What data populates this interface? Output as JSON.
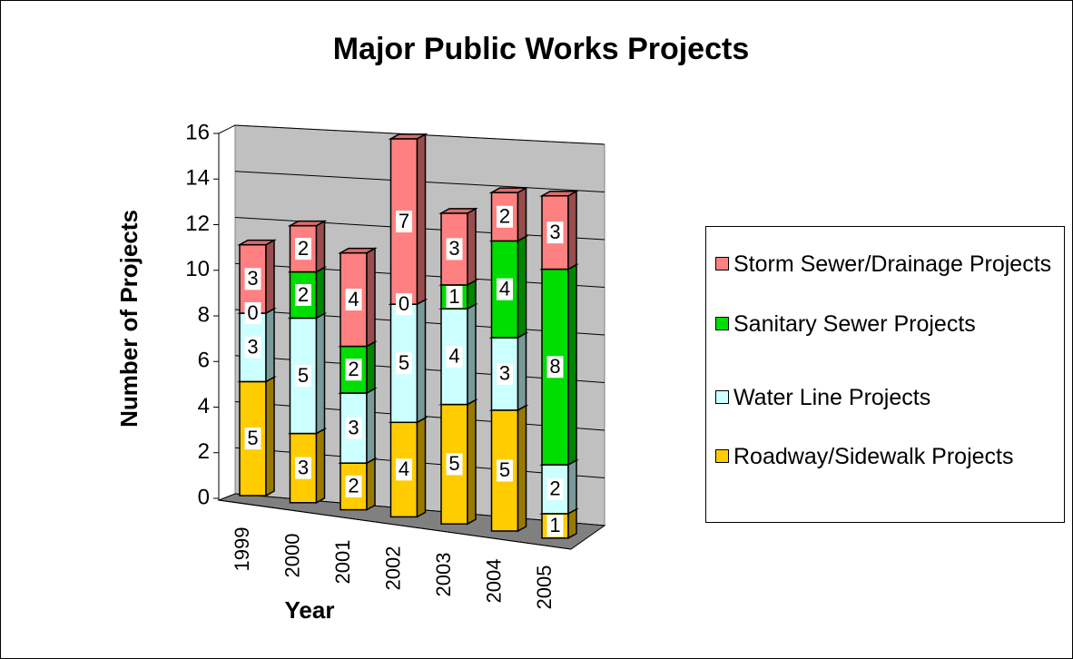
{
  "chart_data": {
    "type": "bar3d_stacked",
    "title": "Major Public Works Projects",
    "x_label": "Year",
    "y_label": "Number of Projects",
    "categories": [
      "1999",
      "2000",
      "2001",
      "2002",
      "2003",
      "2004",
      "2005"
    ],
    "series": [
      {
        "name": "Roadway/Sidewalk Projects",
        "color": "#FFCC00",
        "values": [
          5,
          3,
          2,
          4,
          5,
          5,
          1
        ]
      },
      {
        "name": "Water Line Projects",
        "color": "#CCFFFF",
        "values": [
          3,
          5,
          3,
          5,
          4,
          3,
          2
        ]
      },
      {
        "name": "Sanitary Sewer Projects",
        "color": "#00DD00",
        "values": [
          0,
          2,
          2,
          0,
          1,
          4,
          8
        ]
      },
      {
        "name": "Storm Sewer/Drainage Projects",
        "color": "#FF8080",
        "values": [
          3,
          2,
          4,
          7,
          3,
          2,
          3
        ]
      }
    ],
    "ylim": [
      0,
      16
    ],
    "yticks": [
      0,
      2,
      4,
      6,
      8,
      10,
      12,
      14,
      16
    ],
    "grid": true,
    "stacked": true,
    "data_labels": true,
    "legend": "right"
  }
}
